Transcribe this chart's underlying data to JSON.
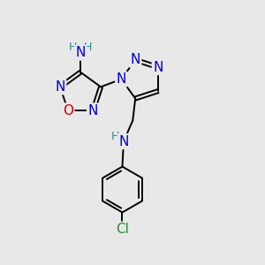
{
  "bg_color": "#e8e8e8",
  "atom_colors": {
    "N": "#0000cc",
    "O": "#cc0000",
    "Cl": "#2d8a2d",
    "C": "#000000",
    "H": "#2d8a8a"
  },
  "bond_color": "#000000",
  "font_size_atom": 11,
  "font_size_H": 9,
  "xlim": [
    0,
    10
  ],
  "ylim": [
    0,
    10
  ]
}
